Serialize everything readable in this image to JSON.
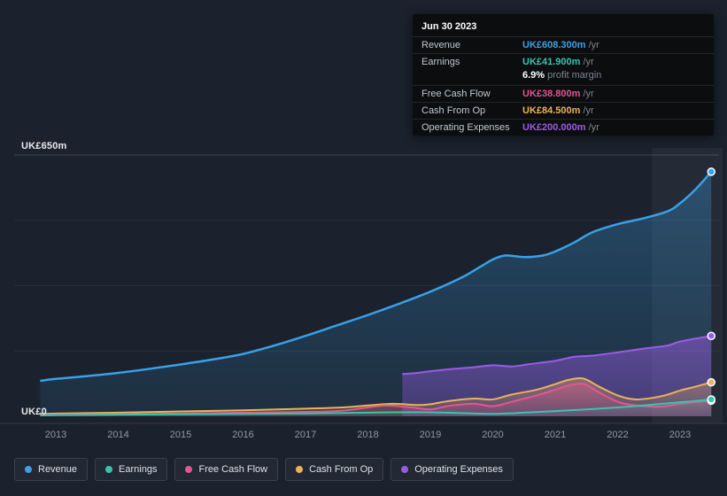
{
  "page": {
    "background": "#1b222d"
  },
  "tooltip": {
    "title": "Jun 30 2023",
    "rows": [
      {
        "label": "Revenue",
        "value": "UK£608.300m",
        "suffix": " /yr",
        "color": "#3ba1e8"
      },
      {
        "label": "Earnings",
        "value": "UK£41.900m",
        "suffix": " /yr",
        "color": "#35c6ae"
      },
      {
        "label": "",
        "value": "6.9%",
        "suffix": " profit margin",
        "color": "#ffffff"
      },
      {
        "label": "Free Cash Flow",
        "value": "UK£38.800m",
        "suffix": " /yr",
        "color": "#e5558f"
      },
      {
        "label": "Cash From Op",
        "value": "UK£84.500m",
        "suffix": " /yr",
        "color": "#ecb258"
      },
      {
        "label": "Operating Expenses",
        "value": "UK£200.000m",
        "suffix": " /yr",
        "color": "#9a5ce6"
      }
    ]
  },
  "y_axis": {
    "top": "UK£650m",
    "bottom": "UK£0"
  },
  "legend": [
    {
      "label": "Revenue",
      "color": "#3aa0e8"
    },
    {
      "label": "Earnings",
      "color": "#35c6ae"
    },
    {
      "label": "Free Cash Flow",
      "color": "#e5558f"
    },
    {
      "label": "Cash From Op",
      "color": "#ecb258"
    },
    {
      "label": "Operating Expenses",
      "color": "#9a5ce6"
    }
  ],
  "chart_data": {
    "type": "area",
    "title": "Revenue & expenses history (UK£ millions per year)",
    "ylabel": "UK£m",
    "ylim": [
      0,
      650
    ],
    "x_ticks": [
      2013,
      2014,
      2015,
      2016,
      2017,
      2018,
      2019,
      2020,
      2021,
      2022,
      2023
    ],
    "gridline_values": [
      0,
      162.5,
      325,
      487.5,
      650
    ],
    "highlight_band": {
      "from": 2022.55,
      "to": 2023.68
    },
    "legend_position": "bottom",
    "series": [
      {
        "name": "Revenue",
        "color": "#3aa0e8",
        "fill": [
          0.32,
          0.1
        ],
        "width": 2.5,
        "points": [
          [
            2012.75,
            88
          ],
          [
            2013,
            93
          ],
          [
            2013.5,
            100
          ],
          [
            2014,
            108
          ],
          [
            2014.5,
            118
          ],
          [
            2015,
            129
          ],
          [
            2015.5,
            141
          ],
          [
            2016,
            155
          ],
          [
            2016.5,
            176
          ],
          [
            2017,
            200
          ],
          [
            2017.5,
            226
          ],
          [
            2018,
            252
          ],
          [
            2018.5,
            280
          ],
          [
            2019,
            310
          ],
          [
            2019.5,
            345
          ],
          [
            2019.8,
            372
          ],
          [
            2020,
            390
          ],
          [
            2020.2,
            400
          ],
          [
            2020.5,
            396
          ],
          [
            2020.8,
            400
          ],
          [
            2021,
            410
          ],
          [
            2021.3,
            432
          ],
          [
            2021.6,
            458
          ],
          [
            2022,
            478
          ],
          [
            2022.4,
            492
          ],
          [
            2022.8,
            510
          ],
          [
            2023,
            530
          ],
          [
            2023.25,
            565
          ],
          [
            2023.5,
            608.3
          ]
        ]
      },
      {
        "name": "Operating Expenses",
        "color": "#9a5ce6",
        "fill": [
          0.5,
          0.28
        ],
        "width": 2,
        "points": [
          [
            2018.55,
            105
          ],
          [
            2018.8,
            108
          ],
          [
            2019,
            112
          ],
          [
            2019.3,
            117
          ],
          [
            2019.7,
            122
          ],
          [
            2020,
            127
          ],
          [
            2020.3,
            124
          ],
          [
            2020.6,
            130
          ],
          [
            2021,
            138
          ],
          [
            2021.3,
            148
          ],
          [
            2021.6,
            151
          ],
          [
            2022,
            159
          ],
          [
            2022.4,
            168
          ],
          [
            2022.8,
            176
          ],
          [
            2023,
            186
          ],
          [
            2023.5,
            200
          ]
        ]
      },
      {
        "name": "Cash From Op",
        "color": "#ecb258",
        "fill": [
          0.38,
          0.12
        ],
        "width": 2,
        "points": [
          [
            2012.75,
            6
          ],
          [
            2013,
            7
          ],
          [
            2014,
            9
          ],
          [
            2015,
            12
          ],
          [
            2016,
            15
          ],
          [
            2017,
            19
          ],
          [
            2017.6,
            22
          ],
          [
            2018,
            27
          ],
          [
            2018.4,
            31
          ],
          [
            2018.8,
            28
          ],
          [
            2019,
            30
          ],
          [
            2019.3,
            38
          ],
          [
            2019.7,
            44
          ],
          [
            2020,
            42
          ],
          [
            2020.3,
            54
          ],
          [
            2020.7,
            66
          ],
          [
            2021,
            80
          ],
          [
            2021.2,
            90
          ],
          [
            2021.45,
            94
          ],
          [
            2021.7,
            74
          ],
          [
            2022,
            52
          ],
          [
            2022.3,
            42
          ],
          [
            2022.7,
            50
          ],
          [
            2023,
            64
          ],
          [
            2023.25,
            74
          ],
          [
            2023.5,
            84.5
          ]
        ]
      },
      {
        "name": "Free Cash Flow",
        "color": "#e5558f",
        "fill": [
          0.4,
          0.12
        ],
        "width": 2,
        "points": [
          [
            2012.75,
            3
          ],
          [
            2013,
            4
          ],
          [
            2014,
            5
          ],
          [
            2015,
            7
          ],
          [
            2016,
            9
          ],
          [
            2017,
            11
          ],
          [
            2017.6,
            14
          ],
          [
            2018,
            22
          ],
          [
            2018.3,
            27
          ],
          [
            2018.7,
            22
          ],
          [
            2019,
            17
          ],
          [
            2019.3,
            26
          ],
          [
            2019.7,
            31
          ],
          [
            2020,
            25
          ],
          [
            2020.3,
            36
          ],
          [
            2020.7,
            52
          ],
          [
            2021,
            66
          ],
          [
            2021.2,
            76
          ],
          [
            2021.45,
            81
          ],
          [
            2021.7,
            60
          ],
          [
            2022,
            36
          ],
          [
            2022.3,
            27
          ],
          [
            2022.7,
            24
          ],
          [
            2023,
            31
          ],
          [
            2023.5,
            38.8
          ]
        ]
      },
      {
        "name": "Earnings",
        "color": "#35c6ae",
        "fill": [
          0.2,
          0.05
        ],
        "width": 2,
        "points": [
          [
            2012.75,
            2
          ],
          [
            2013,
            3
          ],
          [
            2014,
            4
          ],
          [
            2015,
            5
          ],
          [
            2016,
            6
          ],
          [
            2017,
            7
          ],
          [
            2018,
            9
          ],
          [
            2018.5,
            10
          ],
          [
            2019,
            10
          ],
          [
            2019.5,
            8
          ],
          [
            2020,
            6
          ],
          [
            2020.5,
            9
          ],
          [
            2021,
            13
          ],
          [
            2021.5,
            17
          ],
          [
            2022,
            22
          ],
          [
            2022.5,
            28
          ],
          [
            2023,
            35
          ],
          [
            2023.5,
            41.9
          ]
        ]
      }
    ]
  }
}
